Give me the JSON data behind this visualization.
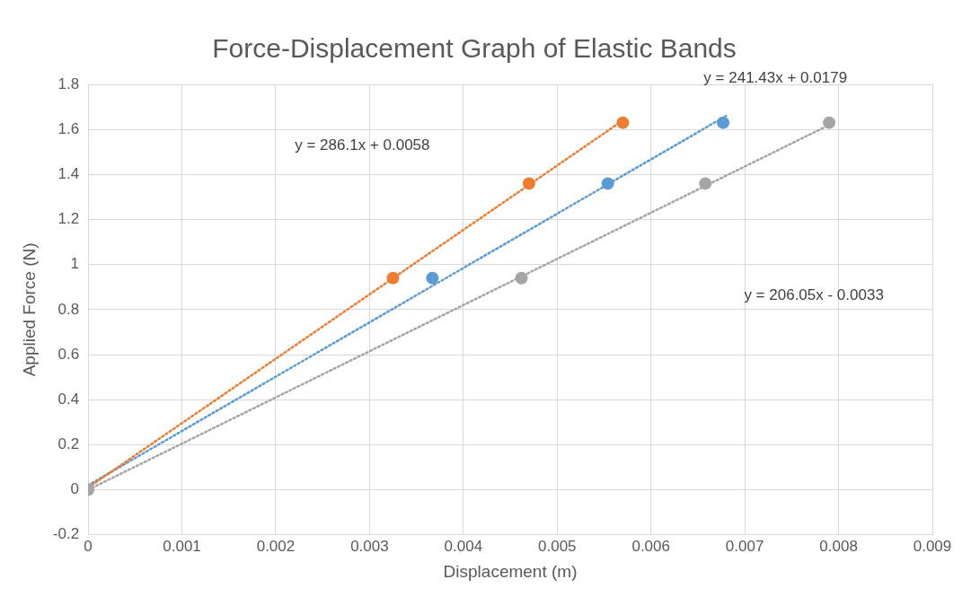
{
  "chart_data": {
    "type": "scatter",
    "title": "Force-Displacement Graph of Elastic Bands",
    "xlabel": "Displacement (m)",
    "ylabel": "Applied Force (N)",
    "xlim": [
      0,
      0.009
    ],
    "xticks": [
      0,
      0.001,
      0.002,
      0.003,
      0.004,
      0.005,
      0.006,
      0.007,
      0.008,
      0.009
    ],
    "ylim": [
      -0.2,
      1.8
    ],
    "yticks": [
      -0.2,
      0,
      0.2,
      0.4,
      0.6,
      0.8,
      1,
      1.2,
      1.4,
      1.6,
      1.8
    ],
    "grid": true,
    "legend": false,
    "marker": "circle",
    "series": [
      {
        "type": "line",
        "line_style": "dotted",
        "marker": "none",
        "color": "#ed7d31",
        "x": [
          0,
          0.0057
        ],
        "values": [
          0.01,
          1.64
        ]
      },
      {
        "type": "line",
        "line_style": "dotted",
        "marker": "none",
        "color": "#5b9bd5",
        "x": [
          0,
          0.0068
        ],
        "values": [
          0.02,
          1.66
        ]
      },
      {
        "type": "line",
        "line_style": "dotted",
        "marker": "none",
        "color": "#a5a5a5",
        "x": [
          0,
          0.0079
        ],
        "values": [
          0,
          1.62
        ]
      },
      {
        "color": "#ed7d31",
        "x": [
          0.00325,
          0.0047,
          0.0057
        ],
        "values": [
          0.94,
          1.36,
          1.63
        ]
      },
      {
        "color": "#5b9bd5",
        "x": [
          0.00367,
          0.00554,
          0.00677
        ],
        "values": [
          0.94,
          1.36,
          1.63
        ]
      },
      {
        "color": "#a5a5a5",
        "x": [
          0,
          0.00462,
          0.00658,
          0.0079
        ],
        "values": [
          0,
          0.94,
          1.36,
          1.63
        ]
      }
    ],
    "annotations": [
      "y = 286.1x + 0.0058",
      "y = 241.43x + 0.0179",
      "y = 206.05x - 0.0033"
    ]
  }
}
